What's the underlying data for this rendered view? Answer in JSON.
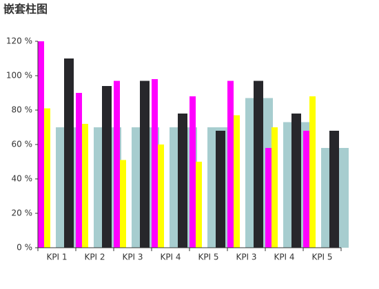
{
  "chart_data": {
    "type": "bar",
    "title": "嵌套柱图",
    "categories": [
      "KPI 1",
      "KPI 2",
      "KPI 3",
      "KPI 4",
      "KPI 5",
      "KPI 3",
      "KPI 4",
      "KPI 5"
    ],
    "series": [
      {
        "color": "#a7cdcf",
        "values": [
          70,
          70,
          70,
          70,
          70,
          87,
          73,
          58
        ]
      },
      {
        "color": "#27272b",
        "values": [
          110,
          94,
          97,
          78,
          68,
          97,
          78,
          68
        ]
      },
      {
        "color": "#ff00ff",
        "values": [
          120,
          90,
          97,
          98,
          88,
          97,
          58,
          68
        ]
      },
      {
        "color": "#ffff00",
        "values": [
          81,
          72,
          51,
          60,
          50,
          77,
          70,
          88
        ]
      }
    ],
    "ylim": [
      0,
      120
    ],
    "yticks": [
      {
        "value": 0,
        "label": "0 %"
      },
      {
        "value": 20,
        "label": "20 %"
      },
      {
        "value": 40,
        "label": "40 %"
      },
      {
        "value": 60,
        "label": "60 %"
      },
      {
        "value": 80,
        "label": "80 %"
      },
      {
        "value": 100,
        "label": "100 %"
      },
      {
        "value": 120,
        "label": "120 %"
      }
    ]
  }
}
